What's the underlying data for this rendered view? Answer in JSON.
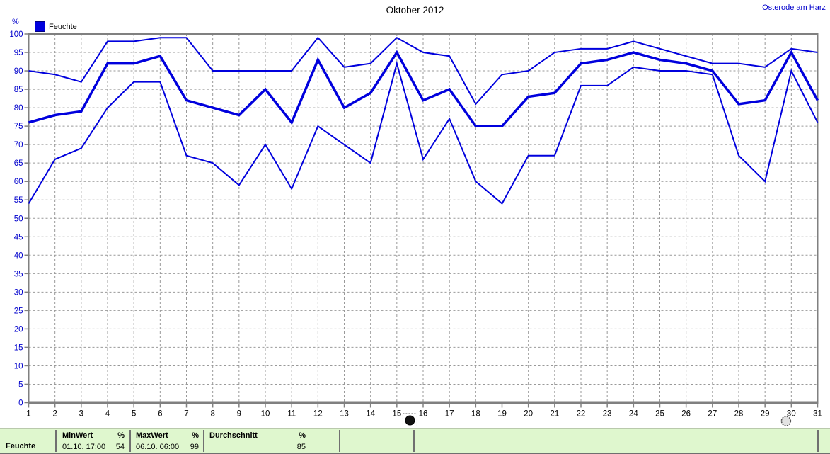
{
  "header": {
    "title": "Oktober 2012",
    "station": "Osterode am Harz"
  },
  "legend": {
    "label": "Feuchte",
    "swatch_color": "#0000dd"
  },
  "chart_data": {
    "type": "line",
    "title": "Oktober 2012",
    "ylabel": "%",
    "xlabel": "",
    "x": [
      1,
      2,
      3,
      4,
      5,
      6,
      7,
      8,
      9,
      10,
      11,
      12,
      13,
      14,
      15,
      16,
      17,
      18,
      19,
      20,
      21,
      22,
      23,
      24,
      25,
      26,
      27,
      28,
      29,
      30,
      31
    ],
    "ylim": [
      0,
      100
    ],
    "ytick_step": 5,
    "grid": true,
    "line_color": "#0000dd",
    "grid_color": "#999999",
    "axis_color": "#808080",
    "legend_position": "top-left",
    "series": [
      {
        "name": "max",
        "values": [
          90,
          89,
          87,
          98,
          98,
          99,
          99,
          90,
          90,
          90,
          90,
          99,
          91,
          92,
          99,
          95,
          94,
          81,
          89,
          90,
          95,
          96,
          96,
          98,
          96,
          94,
          92,
          92,
          91,
          96,
          95
        ]
      },
      {
        "name": "durchschnitt",
        "values": [
          76,
          78,
          79,
          92,
          92,
          94,
          82,
          80,
          78,
          85,
          76,
          93,
          80,
          84,
          95,
          82,
          85,
          75,
          75,
          83,
          84,
          92,
          93,
          95,
          93,
          92,
          90,
          81,
          82,
          95,
          82
        ]
      },
      {
        "name": "min",
        "values": [
          54,
          66,
          69,
          80,
          87,
          87,
          67,
          65,
          59,
          70,
          58,
          75,
          70,
          65,
          92,
          66,
          77,
          60,
          54,
          67,
          67,
          86,
          86,
          91,
          90,
          90,
          89,
          67,
          60,
          90,
          76
        ]
      }
    ],
    "markers": [
      {
        "name": "new-moon",
        "day": 15.5
      },
      {
        "name": "full-moon",
        "day": 29.8
      }
    ]
  },
  "summary_bar": {
    "row_label": "Feuchte",
    "columns": [
      {
        "header": "MinWert",
        "unit": "%",
        "value": "01.10. 17:00",
        "number": "54"
      },
      {
        "header": "MaxWert",
        "unit": "%",
        "value": "06.10. 06:00",
        "number": "99"
      },
      {
        "header": "Durchschnitt",
        "unit": "%",
        "value": "",
        "number": "85"
      }
    ]
  }
}
